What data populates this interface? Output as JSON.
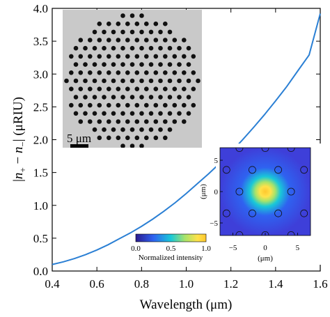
{
  "chart_data": {
    "type": "line",
    "xlabel": "Wavelength (μm)",
    "ylabel_prefix": "|",
    "ylabel_n1": "n",
    "ylabel_sub1": "+",
    "ylabel_minus": " − ",
    "ylabel_n2": "n",
    "ylabel_sub2": "−",
    "ylabel_suffix": "| (μRIU)",
    "xlim": [
      0.4,
      1.6
    ],
    "ylim": [
      0.0,
      4.0
    ],
    "xticks": [
      "0.4",
      "0.6",
      "0.8",
      "1.0",
      "1.2",
      "1.4",
      "1.6"
    ],
    "yticks": [
      "0.0",
      "0.5",
      "1.0",
      "1.5",
      "2.0",
      "2.5",
      "3.0",
      "3.5",
      "4.0"
    ],
    "grid": false,
    "series": [
      {
        "color": "#2a7fd4",
        "x": [
          0.4,
          0.45,
          0.5,
          0.55,
          0.6,
          0.65,
          0.7,
          0.75,
          0.8,
          0.85,
          0.9,
          0.95,
          1.0,
          1.05,
          1.1,
          1.15,
          1.2,
          1.25,
          1.3,
          1.35,
          1.4,
          1.45,
          1.5,
          1.55,
          1.6
        ],
        "y": [
          0.1,
          0.14,
          0.19,
          0.25,
          0.32,
          0.4,
          0.49,
          0.58,
          0.68,
          0.79,
          0.91,
          1.04,
          1.18,
          1.33,
          1.48,
          1.64,
          1.81,
          1.99,
          2.18,
          2.38,
          2.59,
          2.81,
          3.05,
          3.29,
          3.92
        ]
      }
    ]
  },
  "inset_sem": {
    "scale_label": "5 μm",
    "background_color": "#c9c9c9",
    "hole_color": "#111111"
  },
  "inset_mode": {
    "xlabel": "(μm)",
    "ylabel": "(μm)",
    "xticks": [
      "−5",
      "0",
      "5"
    ],
    "yticks": [
      "5",
      "0",
      "−5"
    ],
    "xlim": [
      -7,
      7
    ],
    "ylim": [
      -7,
      7
    ],
    "colorbar_title": "Normalized intensity",
    "colorbar_ticks": [
      "0.0",
      "0.5",
      "1.0"
    ],
    "colormap": [
      "#2b1b8f",
      "#2f62f0",
      "#19c8d8",
      "#a8e36a",
      "#ffe24a",
      "#ffc72e"
    ]
  }
}
